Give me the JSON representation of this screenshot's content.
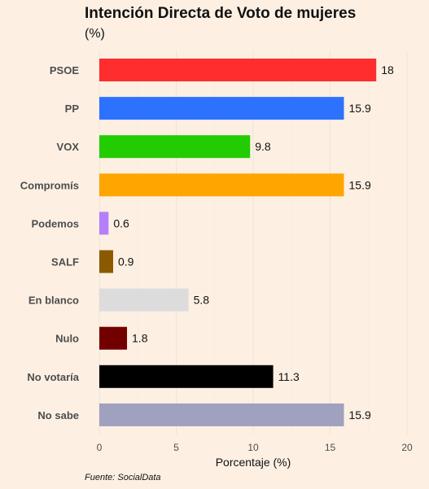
{
  "chart_data": {
    "type": "bar",
    "orientation": "horizontal",
    "title": "Intención Directa de Voto de mujeres",
    "subtitle": "(%)",
    "xlabel": "Porcentaje (%)",
    "ylabel": "",
    "caption": "Fuente: SocialData",
    "xlim": [
      0,
      20
    ],
    "xticks": [
      "0",
      "5",
      "10",
      "15",
      "20"
    ],
    "grid": true,
    "categories": [
      "PSOE",
      "PP",
      "VOX",
      "Compromís",
      "Podemos",
      "SALF",
      "En blanco",
      "Nulo",
      "No votaría",
      "No sabe"
    ],
    "values": [
      18,
      15.9,
      9.8,
      15.9,
      0.6,
      0.9,
      5.8,
      1.8,
      11.3,
      15.9
    ],
    "value_labels": [
      "18",
      "15.9",
      "9.8",
      "15.9",
      "0.6",
      "0.9",
      "5.8",
      "1.8",
      "11.3",
      "15.9"
    ],
    "colors": [
      "#ff2d2d",
      "#2d72ff",
      "#22cc00",
      "#ffa500",
      "#b47ffb",
      "#8b5a00",
      "#dcdcdc",
      "#730000",
      "#000000",
      "#a0a0bf"
    ]
  }
}
